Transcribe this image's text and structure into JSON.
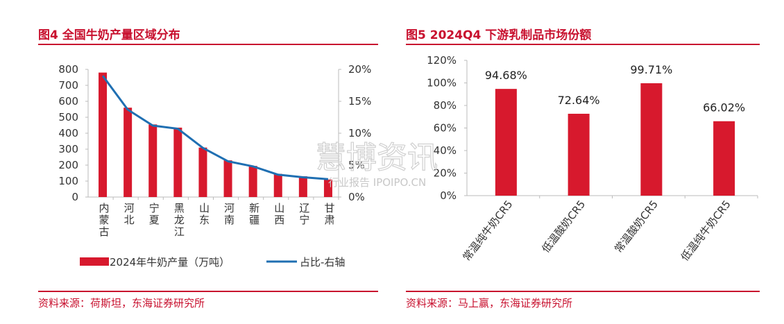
{
  "left": {
    "title": "图4 全国牛奶产量区域分布",
    "source": "资料来源：荷斯坦，东海证券研究所"
  },
  "right": {
    "title": "图5 2024Q4 下游乳制品市场份额",
    "source": "资料来源：马上赢，东海证券研究所"
  },
  "watermark": {
    "main": "慧博资讯",
    "sub": "行业报告 IPOIPO.CN"
  },
  "colors": {
    "accent": "#c8102e",
    "bar": "#d7192d",
    "line": "#1f6fb2"
  },
  "chart_data": [
    {
      "type": "bar",
      "categories": [
        "内蒙古",
        "河北",
        "宁夏",
        "黑龙江",
        "山东",
        "河南",
        "新疆",
        "山西",
        "辽宁",
        "甘肃"
      ],
      "series": [
        {
          "name": "2024年牛奶产量（万吨）",
          "type": "bar",
          "axis": "left",
          "values": [
            780,
            560,
            455,
            435,
            310,
            230,
            195,
            145,
            130,
            110
          ]
        },
        {
          "name": "占比-右轴",
          "type": "line",
          "axis": "right",
          "values": [
            0.19,
            0.137,
            0.112,
            0.107,
            0.077,
            0.056,
            0.048,
            0.035,
            0.031,
            0.028
          ]
        }
      ],
      "ylim": [
        0,
        800
      ],
      "y_ticks": [
        "0",
        "100",
        "200",
        "300",
        "400",
        "500",
        "600",
        "700",
        "800"
      ],
      "y2lim": [
        0,
        0.2
      ],
      "y2_ticks": [
        "0%",
        "5%",
        "10%",
        "15%",
        "20%"
      ],
      "legend": "bottom"
    },
    {
      "type": "bar",
      "categories": [
        "常温纯牛奶CR5",
        "低温酸奶CR5",
        "常温酸奶CR5",
        "低温纯牛奶CR5"
      ],
      "values": [
        94.68,
        72.64,
        99.71,
        66.02
      ],
      "data_labels": [
        "94.68%",
        "72.64%",
        "99.71%",
        "66.02%"
      ],
      "ylim": [
        0,
        120
      ],
      "y_ticks": [
        "0%",
        "20%",
        "40%",
        "60%",
        "80%",
        "100%",
        "120%"
      ]
    }
  ]
}
